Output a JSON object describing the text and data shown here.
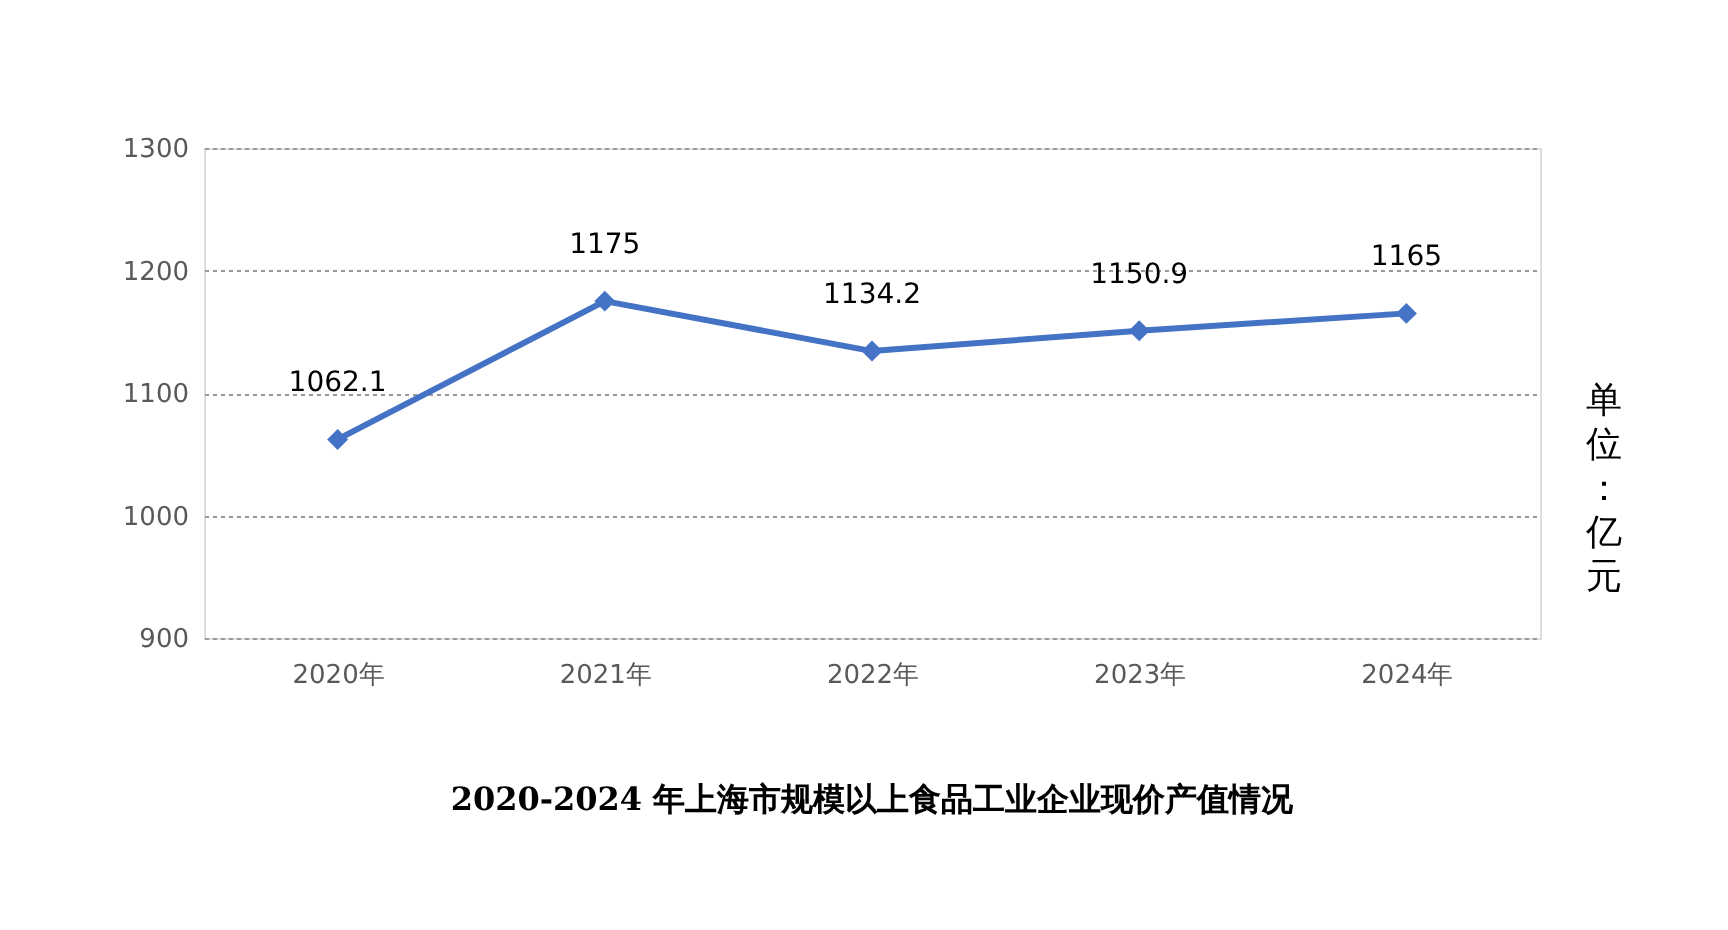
{
  "chart_data": {
    "type": "line",
    "title": "2020-2024 年上海市规模以上食品工业企业现价产值情况",
    "ylabel": "单位：亿元",
    "categories": [
      "2020年",
      "2021年",
      "2022年",
      "2023年",
      "2024年"
    ],
    "series": [
      {
        "color": "#4472c4",
        "values": [
          1062.1,
          1175,
          1134.2,
          1150.9,
          1165
        ]
      }
    ],
    "ylim": [
      900,
      1300
    ],
    "yticks": [
      900,
      1000,
      1100,
      1200,
      1300
    ],
    "grid": "y",
    "marker": "diamond",
    "line_style": "solid",
    "data_labels": true,
    "legend": false
  }
}
